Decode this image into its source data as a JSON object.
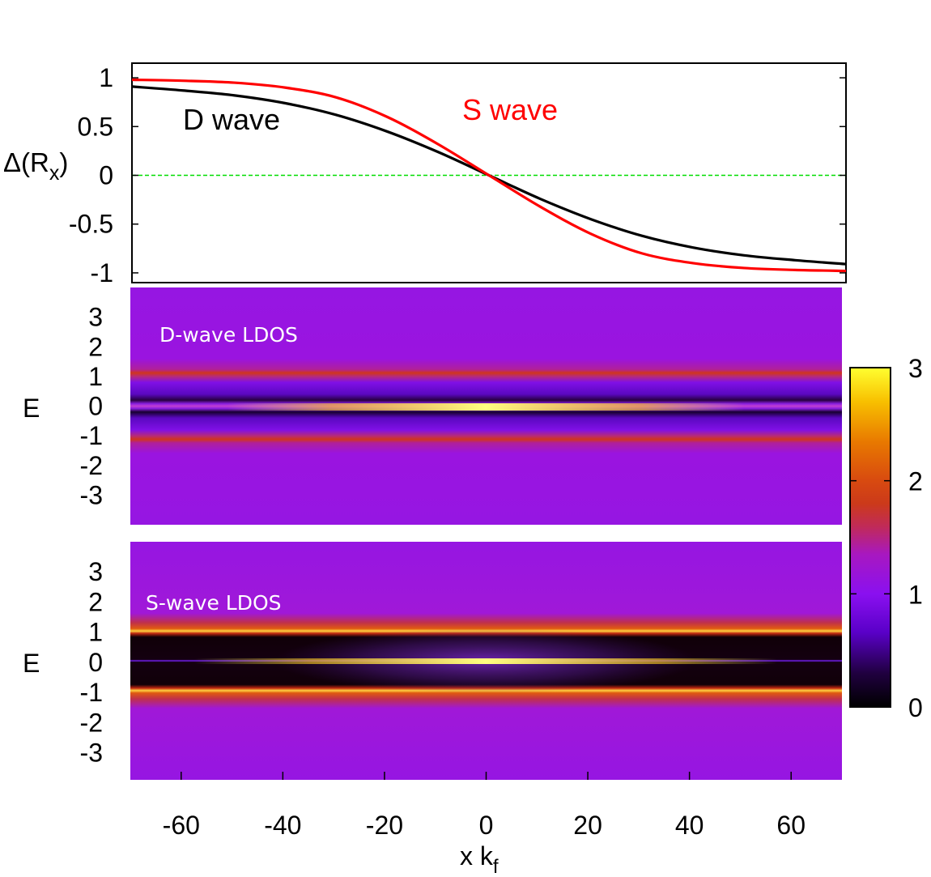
{
  "colors": {
    "d_wave": "#000000",
    "s_wave": "#ff0000",
    "zero_line": "#00dd00",
    "colormap": [
      "#000000",
      "#5a00c8",
      "#9a10e6",
      "#cc2a1e",
      "#e87000",
      "#ffd700",
      "#ffff40"
    ]
  },
  "chart_data": [
    {
      "type": "line",
      "ylabel": "Δ(R",
      "ylabel_sub": "x",
      "ylabel_close": ")",
      "xlim": [
        -70,
        70
      ],
      "ylim": [
        -1.1,
        1.15
      ],
      "yticks": [
        "1",
        "0.5",
        "0",
        "-0.5",
        "-1"
      ],
      "ytick_values": [
        1,
        0.5,
        0,
        -0.5,
        -1
      ],
      "reference_line": 0,
      "series": [
        {
          "name": "D wave",
          "x": [
            -70,
            -60,
            -50,
            -40,
            -30,
            -20,
            -10,
            0,
            10,
            20,
            30,
            40,
            50,
            60,
            70
          ],
          "y": [
            0.91,
            0.87,
            0.82,
            0.74,
            0.62,
            0.45,
            0.24,
            0.0,
            -0.24,
            -0.45,
            -0.62,
            -0.74,
            -0.82,
            -0.87,
            -0.91
          ]
        },
        {
          "name": "S wave",
          "x": [
            -70,
            -60,
            -50,
            -40,
            -30,
            -20,
            -10,
            0,
            10,
            20,
            30,
            40,
            50,
            60,
            70
          ],
          "y": [
            0.98,
            0.97,
            0.95,
            0.9,
            0.8,
            0.6,
            0.32,
            0.0,
            -0.32,
            -0.6,
            -0.8,
            -0.9,
            -0.95,
            -0.97,
            -0.98
          ]
        }
      ]
    },
    {
      "type": "heatmap",
      "title": "D-wave LDOS",
      "ylabel": "E",
      "yticks": [
        "3",
        "2",
        "1",
        "0",
        "-1",
        "-2",
        "-3"
      ],
      "ytick_values": [
        3,
        2,
        1,
        0,
        -1,
        -2,
        -3
      ],
      "ylim": [
        -4,
        4
      ],
      "xlim": [
        -70,
        70
      ],
      "features": [
        {
          "E": 1.0,
          "ldos": 2.0
        },
        {
          "E": -1.0,
          "ldos": 2.0
        },
        {
          "E": 0.0,
          "ldos": 3.0,
          "x_range": [
            -40,
            40
          ]
        }
      ]
    },
    {
      "type": "heatmap",
      "title": "S-wave LDOS",
      "ylabel": "E",
      "yticks": [
        "3",
        "2",
        "1",
        "0",
        "-1",
        "-2",
        "-3"
      ],
      "ytick_values": [
        3,
        2,
        1,
        0,
        -1,
        -2,
        -3
      ],
      "ylim": [
        -3.9,
        4.0
      ],
      "xlim": [
        -70,
        70
      ],
      "xlabel": "x k",
      "xlabel_sub": "f",
      "xticks": [
        "-60",
        "-40",
        "-20",
        "0",
        "20",
        "40",
        "60"
      ],
      "xtick_values": [
        -60,
        -40,
        -20,
        0,
        20,
        40,
        60
      ],
      "features": [
        {
          "E": 1.0,
          "ldos": 2.7
        },
        {
          "E": -1.0,
          "ldos": 2.7
        },
        {
          "E": 0.0,
          "ldos": 3.0,
          "x_range": [
            -45,
            45
          ]
        },
        {
          "E_range": [
            -0.9,
            0.9
          ],
          "ldos": 0.0
        }
      ]
    },
    {
      "type": "colorbar",
      "ticks": [
        "3",
        "2",
        "1",
        "0"
      ],
      "tick_values": [
        3,
        2,
        1,
        0
      ],
      "range": [
        0,
        3
      ]
    }
  ]
}
